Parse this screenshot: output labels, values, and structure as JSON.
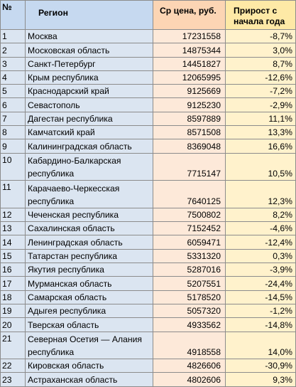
{
  "headers": {
    "no": "№",
    "region": "Регион",
    "price": "Ср цена, руб.",
    "growth": "Прирост с начала года"
  },
  "rows": [
    {
      "no": "1",
      "region": "Москва",
      "price": "17231558",
      "growth": "-8,7%"
    },
    {
      "no": "2",
      "region": "Московская область",
      "price": "14875344",
      "growth": "3,0%"
    },
    {
      "no": "3",
      "region": "Санкт-Петербург",
      "price": "14451827",
      "growth": "8,7%"
    },
    {
      "no": "4",
      "region": "Крым республика",
      "price": "12065995",
      "growth": "-12,6%"
    },
    {
      "no": "5",
      "region": "Краснодарский край",
      "price": "9125669",
      "growth": "-7,2%"
    },
    {
      "no": "6",
      "region": "Севастополь",
      "price": "9125230",
      "growth": "-2,9%"
    },
    {
      "no": "7",
      "region": "Дагестан республика",
      "price": "8597889",
      "growth": "11,1%"
    },
    {
      "no": "8",
      "region": "Камчатский край",
      "price": "8571508",
      "growth": "13,3%"
    },
    {
      "no": "9",
      "region": "Калининградская область",
      "price": "8369048",
      "growth": "16,6%"
    },
    {
      "no": "10",
      "region": "Кабардино-Балкарская республика",
      "price": "7715147",
      "growth": "10,5%"
    },
    {
      "no": "11",
      "region": "Карачаево-Черкесская республика",
      "price": "7640125",
      "growth": "12,3%"
    },
    {
      "no": "12",
      "region": "Чеченская республика",
      "price": "7500802",
      "growth": "8,2%"
    },
    {
      "no": "13",
      "region": "Сахалинская область",
      "price": "7152452",
      "growth": "-4,6%"
    },
    {
      "no": "14",
      "region": "Ленинградская область",
      "price": "6059471",
      "growth": "-12,4%"
    },
    {
      "no": "15",
      "region": "Татарстан республика",
      "price": "5331320",
      "growth": "0,3%"
    },
    {
      "no": "16",
      "region": "Якутия республика",
      "price": "5287016",
      "growth": "-3,9%"
    },
    {
      "no": "17",
      "region": "Мурманская область",
      "price": "5207551",
      "growth": "-24,4%"
    },
    {
      "no": "18",
      "region": "Самарская область",
      "price": "5178520",
      "growth": "-14,5%"
    },
    {
      "no": "19",
      "region": "Адыгея республика",
      "price": "5057320",
      "growth": "-1,2%"
    },
    {
      "no": "20",
      "region": "Тверская область",
      "price": "4933562",
      "growth": "-14,8%"
    },
    {
      "no": "21",
      "region": "Северная Осетия — Алания республика",
      "price": "4918558",
      "growth": "14,0%"
    },
    {
      "no": "22",
      "region": "Кировская область",
      "price": "4826606",
      "growth": "-30,9%"
    },
    {
      "no": "23",
      "region": "Астраханская область",
      "price": "4802606",
      "growth": "9,3%"
    }
  ]
}
